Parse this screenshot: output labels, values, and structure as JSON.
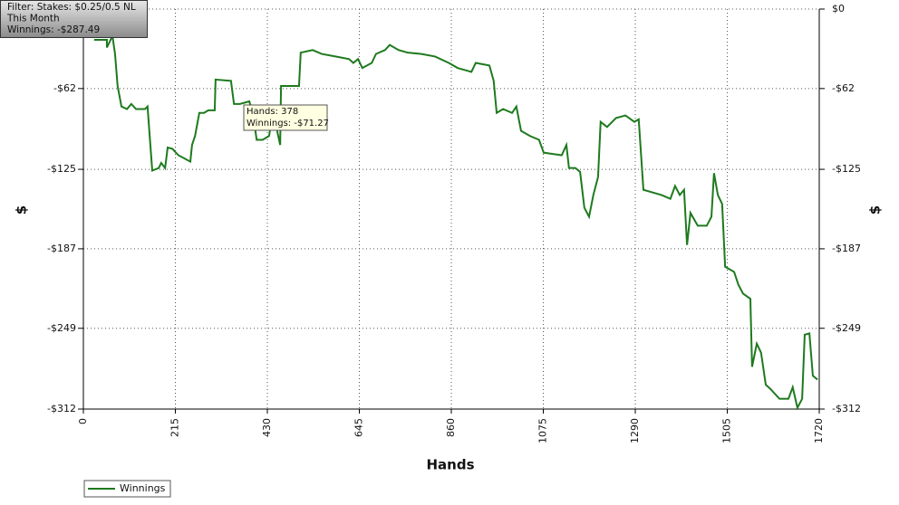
{
  "chart_data": {
    "type": "line",
    "x_label": "Hands",
    "y_label": "$",
    "xlim": [
      0,
      1720
    ],
    "xticks": [
      0,
      215,
      430,
      645,
      860,
      1075,
      1290,
      1505,
      1720
    ],
    "ylim": [
      -312,
      0
    ],
    "yticks": [
      {
        "value": 0,
        "label": "$0"
      },
      {
        "value": -62,
        "label": "-$62"
      },
      {
        "value": -125,
        "label": "-$125"
      },
      {
        "value": -187,
        "label": "-$187"
      },
      {
        "value": -249,
        "label": "-$249"
      },
      {
        "value": -312,
        "label": "-$312"
      }
    ],
    "grid": true,
    "legend": "bottom-left",
    "x": [
      25,
      55,
      55,
      68,
      74,
      80,
      89,
      102,
      112,
      123,
      144,
      150,
      155,
      161,
      176,
      182,
      191,
      197,
      208,
      222,
      250,
      254,
      261,
      271,
      282,
      292,
      307,
      309,
      345,
      352,
      366,
      388,
      398,
      405,
      419,
      434,
      441,
      451,
      460,
      462,
      483,
      504,
      508,
      536,
      557,
      589,
      621,
      631,
      642,
      652,
      674,
      684,
      705,
      716,
      737,
      758,
      790,
      822,
      854,
      875,
      907,
      917,
      949,
      959,
      966,
      981,
      1002,
      1012,
      1023,
      1044,
      1065,
      1076,
      1097,
      1118,
      1129,
      1135,
      1150,
      1161,
      1171,
      1182,
      1192,
      1203,
      1209,
      1224,
      1245,
      1267,
      1288,
      1298,
      1309,
      1351,
      1372,
      1383,
      1394,
      1404,
      1411,
      1419,
      1436,
      1457,
      1468,
      1474,
      1483,
      1493,
      1500,
      1521,
      1531,
      1542,
      1559,
      1563,
      1574,
      1584,
      1595,
      1605,
      1627,
      1648,
      1658,
      1669,
      1680,
      1686,
      1697,
      1705,
      1716
    ],
    "series": [
      {
        "name": "Winnings",
        "color": "#1e7a1e",
        "values": [
          -24,
          -24,
          -30,
          -21,
          -35,
          -60,
          -76,
          -78,
          -74,
          -78,
          -78,
          -76,
          -99,
          -126,
          -124,
          -120,
          -124,
          -108,
          -109,
          -114,
          -119,
          -106,
          -99,
          -81,
          -81,
          -79,
          -79,
          -55,
          -56,
          -74,
          -74,
          -72,
          -85,
          -102,
          -102,
          -99,
          -85,
          -92,
          -106,
          -60,
          -60,
          -60,
          -34,
          -32,
          -35,
          -37,
          -39,
          -42,
          -39,
          -46,
          -42,
          -35,
          -32,
          -28,
          -32,
          -34,
          -35,
          -37,
          -42,
          -46,
          -49,
          -42,
          -44,
          -56,
          -81,
          -78,
          -81,
          -76,
          -95,
          -99,
          -102,
          -112,
          -113,
          -114,
          -106,
          -124,
          -124,
          -127,
          -155,
          -162,
          -145,
          -131,
          -88,
          -92,
          -85,
          -83,
          -88,
          -86,
          -141,
          -145,
          -148,
          -138,
          -145,
          -141,
          -184,
          -159,
          -169,
          -169,
          -162,
          -128,
          -145,
          -152,
          -201,
          -205,
          -215,
          -222,
          -226,
          -279,
          -261,
          -268,
          -293,
          -296,
          -304,
          -304,
          -295,
          -311,
          -304,
          -254,
          -253,
          -286,
          -289
        ]
      }
    ],
    "filter_box": [
      "Filter: Stakes: $0.25/0.5 NL",
      "This Month",
      "Winnings: -$287.49"
    ],
    "tooltip": [
      "Hands: 378",
      "Winnings: -$71.27"
    ]
  }
}
